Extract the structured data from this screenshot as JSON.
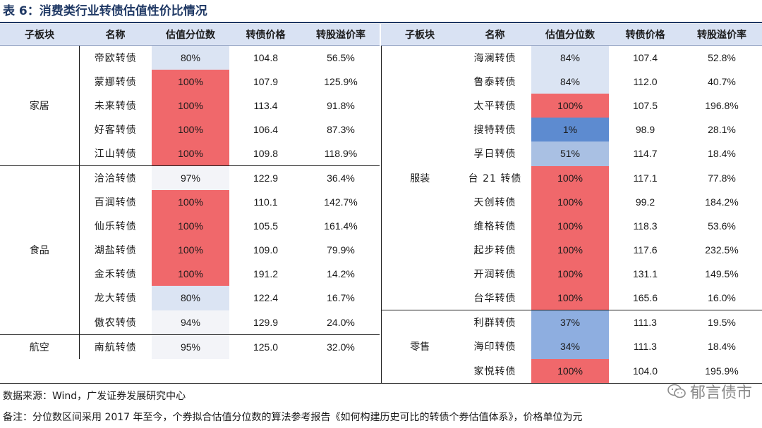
{
  "title": "表 6：消费类行业转债估值性价比情况",
  "headers": [
    "子板块",
    "名称",
    "估值分位数",
    "转债价格",
    "转股溢价率"
  ],
  "left_groups": [
    {
      "segment": "家居",
      "rows": [
        {
          "name": "帝欧转债",
          "pct": "80%",
          "price": "104.8",
          "premium": "56.5%"
        },
        {
          "name": "蒙娜转债",
          "pct": "100%",
          "price": "107.9",
          "premium": "125.9%"
        },
        {
          "name": "未来转债",
          "pct": "100%",
          "price": "113.4",
          "premium": "91.8%"
        },
        {
          "name": "好客转债",
          "pct": "100%",
          "price": "106.4",
          "premium": "87.3%"
        },
        {
          "name": "江山转债",
          "pct": "100%",
          "price": "109.8",
          "premium": "118.9%"
        }
      ]
    },
    {
      "segment": "食品",
      "rows": [
        {
          "name": "洽洽转债",
          "pct": "97%",
          "price": "122.9",
          "premium": "36.4%"
        },
        {
          "name": "百润转债",
          "pct": "100%",
          "price": "110.1",
          "premium": "142.7%"
        },
        {
          "name": "仙乐转债",
          "pct": "100%",
          "price": "105.5",
          "premium": "161.4%"
        },
        {
          "name": "湖盐转债",
          "pct": "100%",
          "price": "109.0",
          "premium": "79.9%"
        },
        {
          "name": "金禾转债",
          "pct": "100%",
          "price": "191.2",
          "premium": "14.2%"
        },
        {
          "name": "龙大转债",
          "pct": "80%",
          "price": "122.4",
          "premium": "16.7%"
        },
        {
          "name": "傲农转债",
          "pct": "94%",
          "price": "129.9",
          "premium": "24.0%"
        }
      ]
    },
    {
      "segment": "航空",
      "rows": [
        {
          "name": "南航转债",
          "pct": "95%",
          "price": "125.0",
          "premium": "32.0%"
        }
      ]
    }
  ],
  "right_groups": [
    {
      "segment": "服装",
      "rows": [
        {
          "name": "海澜转债",
          "pct": "84%",
          "price": "107.4",
          "premium": "52.8%"
        },
        {
          "name": "鲁泰转债",
          "pct": "84%",
          "price": "112.0",
          "premium": "40.7%"
        },
        {
          "name": "太平转债",
          "pct": "100%",
          "price": "107.5",
          "premium": "196.8%"
        },
        {
          "name": "搜特转债",
          "pct": "1%",
          "price": "98.9",
          "premium": "28.1%"
        },
        {
          "name": "孚日转债",
          "pct": "51%",
          "price": "114.7",
          "premium": "18.4%"
        },
        {
          "name": "台 21 转债",
          "pct": "100%",
          "price": "117.1",
          "premium": "77.8%"
        },
        {
          "name": "天创转债",
          "pct": "100%",
          "price": "99.2",
          "premium": "184.2%"
        },
        {
          "name": "维格转债",
          "pct": "100%",
          "price": "118.3",
          "premium": "53.6%"
        },
        {
          "name": "起步转债",
          "pct": "100%",
          "price": "117.6",
          "premium": "232.5%"
        },
        {
          "name": "开润转债",
          "pct": "100%",
          "price": "131.1",
          "premium": "149.5%"
        },
        {
          "name": "台华转债",
          "pct": "100%",
          "price": "165.6",
          "premium": "16.0%"
        }
      ]
    },
    {
      "segment": "零售",
      "rows": [
        {
          "name": "利群转债",
          "pct": "37%",
          "price": "111.3",
          "premium": "19.5%"
        },
        {
          "name": "海印转债",
          "pct": "34%",
          "price": "111.3",
          "premium": "18.4%"
        },
        {
          "name": "家悦转债",
          "pct": "100%",
          "price": "104.0",
          "premium": "195.9%"
        }
      ]
    }
  ],
  "colors": {
    "hot": "#f0686b",
    "cold": "#5d8bd0",
    "mid_light": "#a9c0e3",
    "light": "#dbe4f3",
    "near_hot": "#f3f4f8",
    "header_bg": "#d9e2f3"
  },
  "source": "数据来源：Wind，广发证券发展研究中心",
  "note": "备注：分位数区间采用 2017 年至今，个券拟合估值分位数的算法参考报告《如何构建历史可比的转债个券估值体系》，价格单位为元",
  "watermark": {
    "text": "郁言债市",
    "icon": "chat-bubble-icon"
  }
}
